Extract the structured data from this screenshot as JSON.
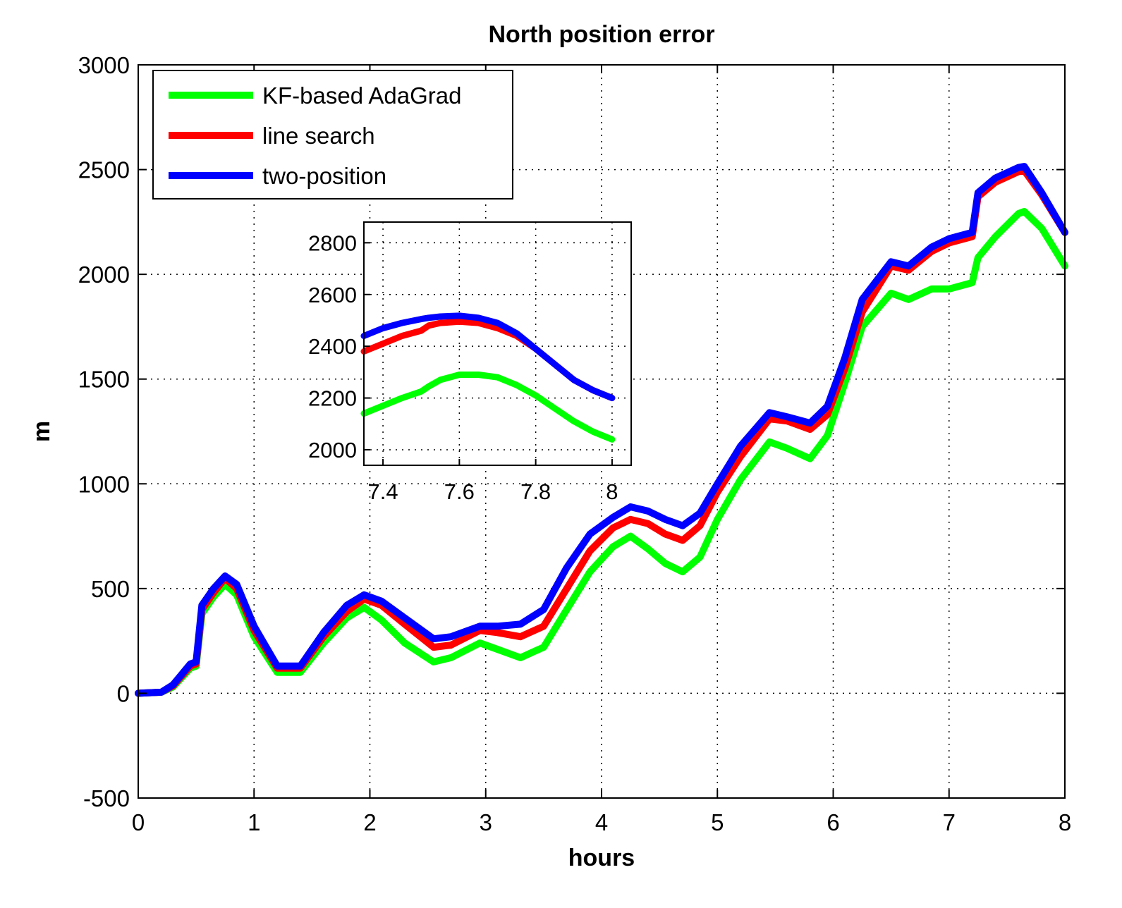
{
  "chart_data": [
    {
      "type": "line",
      "title": "North position error",
      "xlabel": "hours",
      "ylabel": "m",
      "xlim": [
        0,
        8
      ],
      "ylim": [
        -500,
        3000
      ],
      "xticks": [
        "0",
        "1",
        "2",
        "3",
        "4",
        "5",
        "6",
        "7",
        "8"
      ],
      "yticks": [
        "-500",
        "0",
        "500",
        "1000",
        "1500",
        "2000",
        "2500",
        "3000"
      ],
      "grid": true,
      "legend_position": "top-left",
      "series": [
        {
          "name": "KF-based AdaGrad",
          "color": "#00ff00",
          "x": [
            0,
            0.2,
            0.3,
            0.45,
            0.5,
            0.55,
            0.65,
            0.75,
            0.85,
            1.0,
            1.2,
            1.4,
            1.6,
            1.8,
            1.95,
            2.1,
            2.3,
            2.55,
            2.7,
            2.95,
            3.1,
            3.3,
            3.5,
            3.7,
            3.9,
            4.1,
            4.25,
            4.4,
            4.55,
            4.7,
            4.85,
            5.0,
            5.2,
            5.45,
            5.6,
            5.8,
            5.95,
            6.1,
            6.25,
            6.5,
            6.65,
            6.85,
            7.0,
            7.2,
            7.25,
            7.4,
            7.6,
            7.65,
            7.8,
            8.0
          ],
          "values": [
            0,
            5,
            30,
            120,
            130,
            380,
            460,
            520,
            470,
            270,
            100,
            100,
            240,
            360,
            410,
            350,
            240,
            150,
            170,
            240,
            210,
            170,
            220,
            400,
            580,
            700,
            750,
            690,
            620,
            580,
            650,
            830,
            1020,
            1200,
            1170,
            1120,
            1230,
            1480,
            1750,
            1910,
            1880,
            1930,
            1930,
            1960,
            2080,
            2180,
            2290,
            2300,
            2220,
            2040
          ]
        },
        {
          "name": "line search",
          "color": "#ff0000",
          "x": [
            0,
            0.2,
            0.3,
            0.45,
            0.5,
            0.55,
            0.65,
            0.75,
            0.85,
            1.0,
            1.2,
            1.4,
            1.6,
            1.8,
            1.95,
            2.1,
            2.3,
            2.55,
            2.7,
            2.95,
            3.1,
            3.3,
            3.5,
            3.7,
            3.9,
            4.1,
            4.25,
            4.4,
            4.55,
            4.7,
            4.85,
            5.0,
            5.2,
            5.45,
            5.6,
            5.8,
            5.95,
            6.1,
            6.25,
            6.5,
            6.65,
            6.85,
            7.0,
            7.2,
            7.25,
            7.4,
            7.6,
            7.65,
            7.8,
            8.0
          ],
          "values": [
            0,
            5,
            35,
            130,
            140,
            400,
            480,
            550,
            500,
            300,
            120,
            120,
            270,
            390,
            450,
            420,
            330,
            220,
            230,
            300,
            290,
            270,
            320,
            500,
            680,
            790,
            830,
            810,
            760,
            730,
            800,
            960,
            1130,
            1310,
            1300,
            1260,
            1330,
            1550,
            1820,
            2040,
            2020,
            2110,
            2150,
            2180,
            2370,
            2440,
            2490,
            2495,
            2380,
            2200
          ]
        },
        {
          "name": "two-position",
          "color": "#0000ff",
          "x": [
            0,
            0.2,
            0.3,
            0.45,
            0.5,
            0.55,
            0.65,
            0.75,
            0.85,
            1.0,
            1.2,
            1.4,
            1.6,
            1.8,
            1.95,
            2.1,
            2.3,
            2.55,
            2.7,
            2.95,
            3.1,
            3.3,
            3.5,
            3.7,
            3.9,
            4.1,
            4.25,
            4.4,
            4.55,
            4.7,
            4.85,
            5.0,
            5.2,
            5.45,
            5.6,
            5.8,
            5.95,
            6.1,
            6.25,
            6.5,
            6.65,
            6.85,
            7.0,
            7.2,
            7.25,
            7.4,
            7.6,
            7.65,
            7.8,
            8.0
          ],
          "values": [
            0,
            5,
            40,
            140,
            150,
            420,
            500,
            560,
            520,
            320,
            130,
            130,
            290,
            420,
            470,
            440,
            360,
            260,
            270,
            320,
            320,
            330,
            400,
            600,
            760,
            840,
            890,
            870,
            830,
            800,
            860,
            1000,
            1180,
            1340,
            1320,
            1290,
            1370,
            1600,
            1880,
            2060,
            2040,
            2130,
            2170,
            2200,
            2390,
            2460,
            2510,
            2515,
            2390,
            2200
          ]
        }
      ]
    },
    {
      "type": "line",
      "title": "",
      "xlabel": "",
      "ylabel": "",
      "xlim": [
        7.35,
        8.05
      ],
      "ylim": [
        1940,
        2880
      ],
      "xticks": [
        "7.4",
        "7.6",
        "7.8",
        "8"
      ],
      "yticks": [
        "2000",
        "2200",
        "2400",
        "2600",
        "2800"
      ],
      "grid": true,
      "series": [
        {
          "name": "KF-based AdaGrad",
          "color": "#00ff00",
          "x": [
            7.35,
            7.4,
            7.45,
            7.5,
            7.52,
            7.55,
            7.6,
            7.65,
            7.7,
            7.75,
            7.8,
            7.85,
            7.9,
            7.95,
            8.0
          ],
          "values": [
            2140,
            2170,
            2200,
            2225,
            2245,
            2270,
            2290,
            2290,
            2280,
            2250,
            2210,
            2160,
            2110,
            2070,
            2040
          ]
        },
        {
          "name": "line search",
          "color": "#ff0000",
          "x": [
            7.35,
            7.4,
            7.45,
            7.5,
            7.52,
            7.55,
            7.6,
            7.65,
            7.7,
            7.75,
            7.8,
            7.85,
            7.9,
            7.95,
            8.0
          ],
          "values": [
            2380,
            2410,
            2440,
            2460,
            2480,
            2490,
            2495,
            2490,
            2470,
            2440,
            2390,
            2330,
            2270,
            2230,
            2200
          ]
        },
        {
          "name": "two-position",
          "color": "#0000ff",
          "x": [
            7.35,
            7.4,
            7.45,
            7.5,
            7.52,
            7.55,
            7.6,
            7.65,
            7.7,
            7.75,
            7.8,
            7.85,
            7.9,
            7.95,
            8.0
          ],
          "values": [
            2440,
            2470,
            2490,
            2505,
            2510,
            2515,
            2518,
            2510,
            2490,
            2450,
            2390,
            2330,
            2270,
            2230,
            2200
          ]
        }
      ]
    }
  ]
}
